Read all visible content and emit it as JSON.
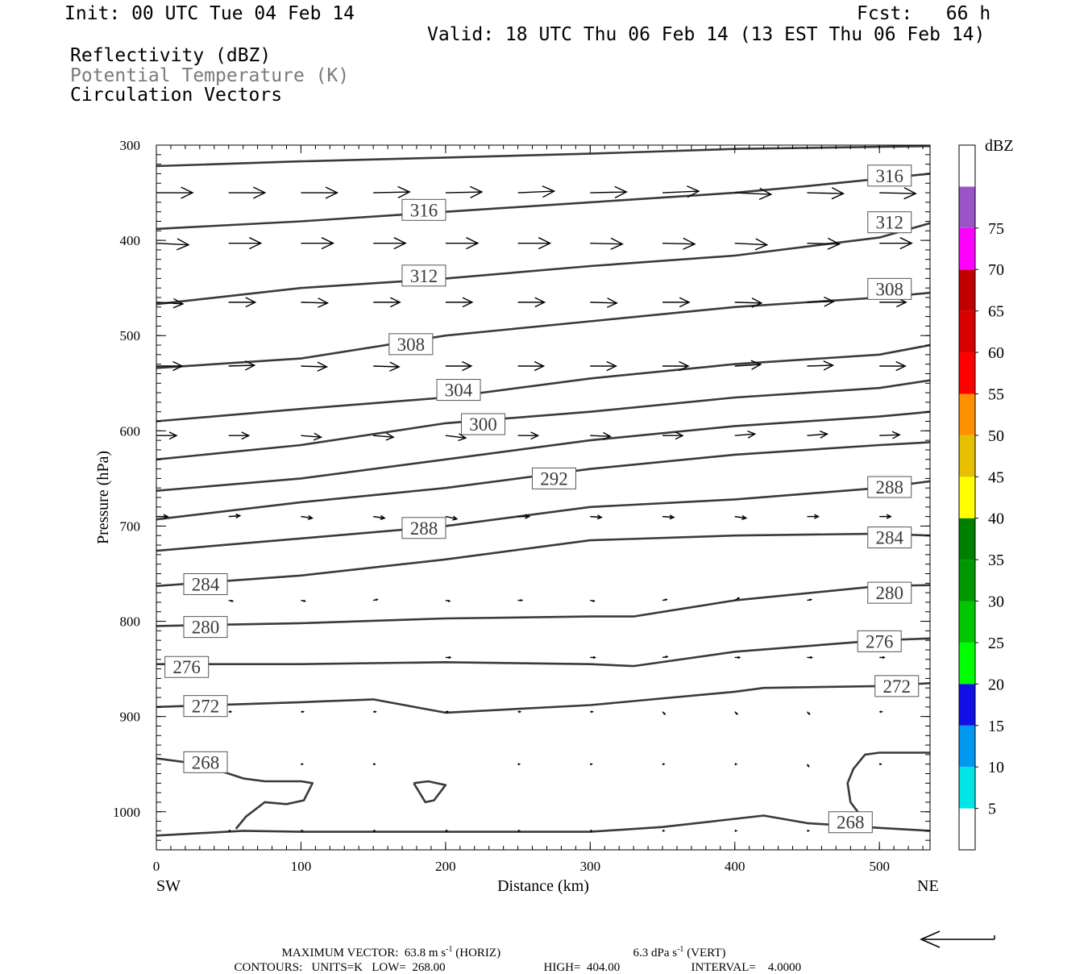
{
  "header": {
    "init": "Init: 00 UTC Tue 04 Feb 14",
    "fcst": "Fcst:   66 h",
    "valid": "Valid: 18 UTC Thu 06 Feb 14 (13 EST Thu 06 Feb 14)",
    "fields": [
      "Reflectivity (dBZ)",
      "Potential Temperature (K)",
      "Circulation Vectors"
    ]
  },
  "chart_data": {
    "type": "line",
    "xlabel": "Distance (km)",
    "ylabel": "Pressure (hPa)",
    "xlim": [
      0,
      535
    ],
    "ylim": [
      1040,
      300
    ],
    "x_ticks": [
      0,
      100,
      200,
      300,
      400,
      500
    ],
    "y_ticks": [
      300,
      400,
      500,
      600,
      700,
      800,
      900,
      1000
    ],
    "left_end_label": "SW",
    "right_end_label": "NE",
    "contour_units": "K",
    "contour_color": "#3a3a3a",
    "series": [
      {
        "name": "316",
        "x": [
          0,
          100,
          200,
          300,
          400,
          535
        ],
        "y": [
          322,
          317,
          313,
          309,
          304,
          301
        ]
      },
      {
        "name": "316",
        "x": [
          0,
          100,
          200,
          300,
          400,
          450,
          535
        ],
        "y": [
          388,
          380,
          370,
          360,
          350,
          343,
          330
        ]
      },
      {
        "name": "312",
        "x": [
          0,
          100,
          200,
          300,
          400,
          500,
          535
        ],
        "y": [
          467,
          450,
          440,
          427,
          416,
          397,
          382
        ]
      },
      {
        "name": "308",
        "x": [
          0,
          100,
          200,
          300,
          400,
          500,
          535
        ],
        "y": [
          534,
          524,
          500,
          485,
          470,
          460,
          455
        ]
      },
      {
        "name": "304",
        "x": [
          0,
          100,
          200,
          300,
          400,
          500,
          535
        ],
        "y": [
          590,
          577,
          565,
          545,
          530,
          520,
          510
        ]
      },
      {
        "name": "300",
        "x": [
          0,
          100,
          200,
          300,
          400,
          500,
          535
        ],
        "y": [
          630,
          615,
          592,
          580,
          565,
          555,
          547
        ]
      },
      {
        "name": "296",
        "x": [
          0,
          100,
          200,
          300,
          400,
          500,
          535
        ],
        "y": [
          663,
          650,
          630,
          610,
          595,
          585,
          580
        ]
      },
      {
        "name": "292",
        "x": [
          0,
          100,
          200,
          300,
          400,
          500,
          535
        ],
        "y": [
          693,
          675,
          660,
          640,
          625,
          615,
          612
        ]
      },
      {
        "name": "288",
        "x": [
          0,
          100,
          200,
          300,
          400,
          500,
          535
        ],
        "y": [
          726,
          713,
          700,
          680,
          672,
          660,
          653
        ]
      },
      {
        "name": "284",
        "x": [
          0,
          100,
          200,
          300,
          400,
          500,
          535
        ],
        "y": [
          763,
          752,
          735,
          715,
          710,
          708,
          710
        ]
      },
      {
        "name": "280",
        "x": [
          0,
          100,
          200,
          300,
          330,
          400,
          500,
          535
        ],
        "y": [
          805,
          802,
          797,
          795,
          795,
          778,
          763,
          762
        ]
      },
      {
        "name": "276",
        "x": [
          0,
          100,
          200,
          300,
          330,
          400,
          500,
          535
        ],
        "y": [
          845,
          845,
          843,
          845,
          847,
          832,
          820,
          818
        ]
      },
      {
        "name": "272",
        "x": [
          0,
          100,
          150,
          200,
          300,
          400,
          420,
          500,
          535
        ],
        "y": [
          890,
          885,
          882,
          896,
          888,
          874,
          870,
          868,
          865
        ]
      },
      {
        "name": "268",
        "x": [
          0,
          60,
          100,
          200,
          300,
          350,
          420,
          450,
          500,
          535
        ],
        "y": [
          1025,
          1020,
          1021,
          1021,
          1021,
          1016,
          1004,
          1012,
          1017,
          1020
        ]
      },
      {
        "name": "268",
        "x": [
          0,
          30,
          60,
          75,
          85,
          100,
          108,
          102,
          90,
          75,
          62,
          55
        ],
        "y": [
          944,
          950,
          965,
          968,
          968,
          968,
          970,
          988,
          992,
          990,
          1005,
          1018
        ]
      },
      {
        "name": "268",
        "x": [
          178,
          188,
          200,
          192,
          186,
          178
        ],
        "y": [
          970,
          968,
          972,
          988,
          990,
          970
        ]
      },
      {
        "name": "268",
        "x": [
          535,
          500,
          490,
          482,
          478,
          480,
          485
        ],
        "y": [
          938,
          938,
          940,
          955,
          970,
          990,
          1000
        ]
      }
    ],
    "contour_labels": [
      {
        "text": "316",
        "x": 507,
        "y": 332
      },
      {
        "text": "316",
        "x": 185,
        "y": 368
      },
      {
        "text": "312",
        "x": 507,
        "y": 381
      },
      {
        "text": "312",
        "x": 185,
        "y": 437
      },
      {
        "text": "308",
        "x": 507,
        "y": 451
      },
      {
        "text": "308",
        "x": 176,
        "y": 509
      },
      {
        "text": "304",
        "x": 209,
        "y": 557
      },
      {
        "text": "300",
        "x": 226,
        "y": 593
      },
      {
        "text": "292",
        "x": 275,
        "y": 650
      },
      {
        "text": "288",
        "x": 507,
        "y": 659
      },
      {
        "text": "288",
        "x": 185,
        "y": 702
      },
      {
        "text": "284",
        "x": 507,
        "y": 712
      },
      {
        "text": "284",
        "x": 34,
        "y": 761
      },
      {
        "text": "280",
        "x": 507,
        "y": 770
      },
      {
        "text": "280",
        "x": 34,
        "y": 806
      },
      {
        "text": "276",
        "x": 500,
        "y": 821
      },
      {
        "text": "276",
        "x": 21,
        "y": 848
      },
      {
        "text": "272",
        "x": 512,
        "y": 868
      },
      {
        "text": "272",
        "x": 34,
        "y": 889
      },
      {
        "text": "268",
        "x": 34,
        "y": 948
      },
      {
        "text": "268",
        "x": 480,
        "y": 1011
      }
    ],
    "vectors": [
      {
        "p": 350,
        "len": 45,
        "xs": [
          0,
          50,
          100,
          150,
          200,
          250,
          300,
          350,
          400,
          450,
          500
        ],
        "dy": [
          0,
          0,
          0,
          -1,
          -1,
          -2,
          -1,
          -2,
          2,
          1,
          1
        ]
      },
      {
        "p": 403,
        "len": 40,
        "xs": [
          0,
          50,
          100,
          150,
          200,
          250,
          300,
          350,
          400,
          450,
          500
        ],
        "dy": [
          2,
          0,
          0,
          0,
          0,
          0,
          1,
          1,
          2,
          1,
          0
        ]
      },
      {
        "p": 465,
        "len": 33,
        "xs": [
          0,
          50,
          100,
          150,
          200,
          250,
          300,
          350,
          400,
          450,
          500
        ],
        "dy": [
          2,
          0,
          1,
          0,
          0,
          0,
          1,
          0,
          1,
          -1,
          0
        ]
      },
      {
        "p": 532,
        "len": 32,
        "xs": [
          0,
          50,
          100,
          150,
          200,
          250,
          300,
          350,
          400,
          450,
          500
        ],
        "dy": [
          0,
          -1,
          1,
          1,
          0,
          0,
          0,
          0,
          -2,
          -1,
          0
        ]
      },
      {
        "p": 605,
        "len": 25,
        "xs": [
          0,
          50,
          100,
          150,
          200,
          250,
          300,
          350,
          400,
          450,
          500
        ],
        "dy": [
          0,
          0,
          2,
          2,
          3,
          0,
          1,
          0,
          -2,
          -2,
          -1
        ]
      },
      {
        "p": 690,
        "len": 14,
        "xs": [
          0,
          50,
          100,
          150,
          200,
          250,
          300,
          350,
          400,
          450,
          500
        ],
        "dy": [
          0,
          -1,
          2,
          2,
          3,
          0,
          1,
          1,
          2,
          0,
          0
        ]
      },
      {
        "p": 778,
        "len": 5,
        "xs": [
          50,
          100,
          150,
          200,
          250,
          300,
          350,
          400,
          450
        ],
        "dy": [
          1,
          1,
          -1,
          1,
          0,
          1,
          -1,
          -3,
          -1
        ]
      },
      {
        "p": 838,
        "len": 6,
        "xs": [
          200,
          300,
          350,
          400,
          450,
          500
        ],
        "dy": [
          0,
          0,
          -1,
          0,
          0,
          0
        ]
      },
      {
        "p": 895,
        "len": 3,
        "xs": [
          50,
          100,
          150,
          200,
          250,
          300,
          350,
          400,
          450,
          500
        ],
        "dy": [
          0,
          0,
          0,
          0,
          0,
          0,
          3,
          3,
          3,
          0
        ]
      },
      {
        "p": 950,
        "len": 2,
        "xs": [
          100,
          150,
          250,
          300,
          350,
          400,
          450,
          500
        ],
        "dy": [
          0,
          0,
          0,
          0,
          0,
          0,
          3,
          0
        ]
      },
      {
        "p": 1020,
        "len": 2,
        "xs": [
          50,
          100,
          150,
          200,
          250,
          300,
          350,
          400,
          450
        ],
        "dy": [
          0,
          0,
          0,
          0,
          0,
          0,
          0,
          0,
          0
        ]
      }
    ],
    "colorbar": {
      "label": "dBZ",
      "ticks": [
        "5",
        "10",
        "15",
        "20",
        "25",
        "30",
        "35",
        "40",
        "45",
        "50",
        "55",
        "60",
        "65",
        "70",
        "75"
      ],
      "colors": [
        "#ffffff",
        "#00e6e6",
        "#0099f0",
        "#0f0fe6",
        "#00ff00",
        "#00c800",
        "#009800",
        "#008000",
        "#ffff00",
        "#e6c000",
        "#ff9000",
        "#ff0000",
        "#d70000",
        "#c00000",
        "#ff00ff",
        "#9955c8",
        "#ffffff"
      ]
    },
    "grid": false
  },
  "footer": {
    "max_vector_label": "MAXIMUM VECTOR:",
    "horiz_value": "63.8",
    "horiz_unit": "m s",
    "horiz_tag": "(HORIZ)",
    "vert_value": "6.3",
    "vert_unit": "dPa s",
    "vert_tag": "(VERT)",
    "exponent": "-1",
    "contours_label": "CONTOURS:",
    "units": "UNITS=K",
    "low_label": "LOW=",
    "low": "268.00",
    "high_label": "HIGH=",
    "high": "404.00",
    "interval_label": "INTERVAL=",
    "interval": "4.0000"
  }
}
